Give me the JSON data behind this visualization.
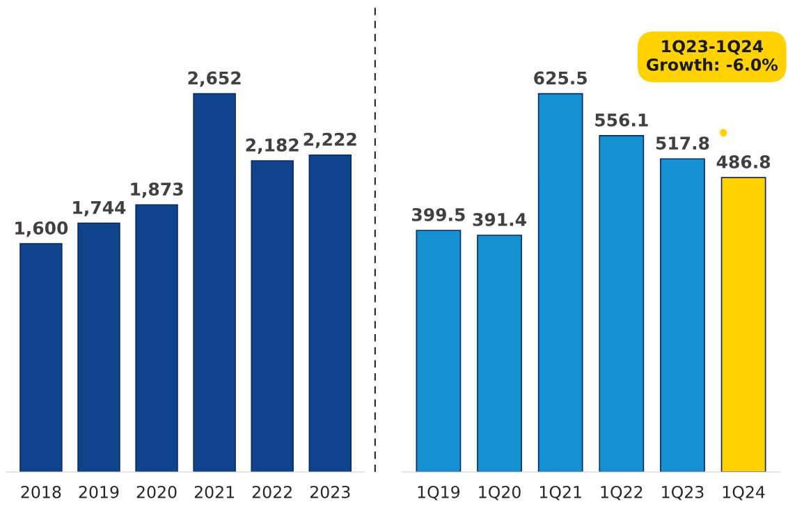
{
  "chart_data": [
    {
      "type": "bar",
      "categories": [
        "2018",
        "2019",
        "2020",
        "2021",
        "2022",
        "2023"
      ],
      "values": [
        1600,
        1744,
        1873,
        2652,
        2182,
        2222
      ],
      "value_labels": [
        "1,600",
        "1,744",
        "1,873",
        "2,652",
        "2,182",
        "2,222"
      ],
      "color": "#0f448c"
    },
    {
      "type": "bar",
      "categories": [
        "1Q19",
        "1Q20",
        "1Q21",
        "1Q22",
        "1Q23",
        "1Q24"
      ],
      "values": [
        399.5,
        391.4,
        625.5,
        556.1,
        517.8,
        486.8
      ],
      "colors": [
        "#1590d0",
        "#1590d0",
        "#1590d0",
        "#1590d0",
        "#1590d0",
        "#ffd200"
      ],
      "value_labels": [
        "399.5",
        "391.4",
        "625.5",
        "556.1",
        "517.8",
        "486.8"
      ],
      "annotations": [
        "1Q23-1Q24\nGrowth: -6.0%"
      ]
    }
  ]
}
